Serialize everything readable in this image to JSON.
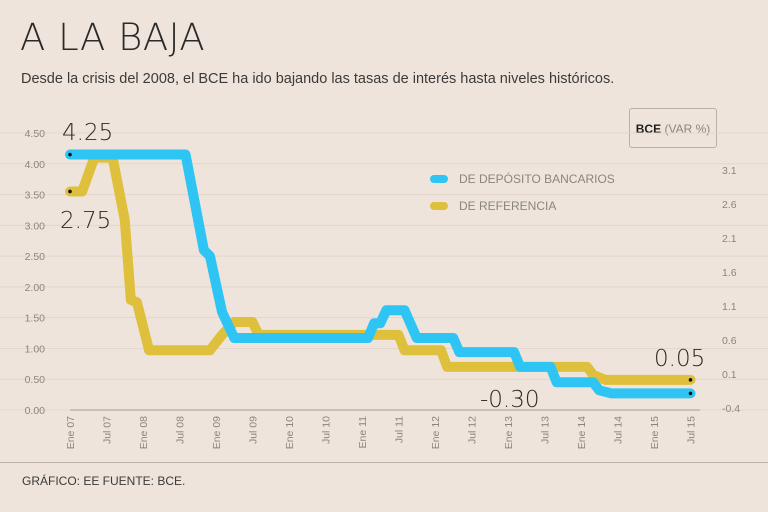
{
  "title": "A LA BAJA",
  "subtitle": "Desde la crisis del 2008, el BCE ha ido bajando las tasas de interés hasta niveles históricos.",
  "box": {
    "bold": "BCE",
    "rest": "(VAR %)"
  },
  "footer": "GRÁFICO: EE  FUENTE: BCE.",
  "colors": {
    "deposito": "#2ec5f5",
    "referencia": "#dfc03c",
    "background": "#efe4db"
  },
  "chart_data": {
    "type": "line",
    "title": "A LA BAJA",
    "ylim": [
      0,
      4.5
    ],
    "y2lim": [
      -0.4,
      3.1
    ],
    "yticks": [
      "4.50",
      "4.00",
      "3.50",
      "3.00",
      "2.50",
      "2.00",
      "1.50",
      "1.00",
      "0.50",
      "0.00"
    ],
    "y2ticks": [
      "3.1",
      "2.6",
      "2.1",
      "1.6",
      "1.1",
      "0.6",
      "0.1",
      "-0.4"
    ],
    "xticks": [
      "Ene 07",
      "Jul 07",
      "Ene 08",
      "Jul 08",
      "Ene 09",
      "Jul 09",
      "Ene 10",
      "Jul 10",
      "Ene 11",
      "Jul 11",
      "Ene 12",
      "Jul 12",
      "Ene 13",
      "Jul 13",
      "Ene 14",
      "Jul 14",
      "Ene 15",
      "Jul 15"
    ],
    "grid": true,
    "legend_position": "top-right",
    "series": [
      {
        "name": "DE DEPÓSITO BANCARIOS",
        "color": "#2ec5f5",
        "x": [
          "2007-01",
          "2008-08",
          "2008-11",
          "2008-12",
          "2009-02",
          "2009-04",
          "2011-02",
          "2011-03",
          "2011-04",
          "2011-05",
          "2011-08",
          "2011-10",
          "2012-04",
          "2012-05",
          "2013-02",
          "2013-03",
          "2013-08",
          "2013-09",
          "2014-03",
          "2014-04",
          "2014-06",
          "2015-07"
        ],
        "y": [
          4.15,
          4.15,
          2.6,
          2.5,
          1.59,
          1.17,
          1.17,
          1.41,
          1.41,
          1.62,
          1.62,
          1.17,
          1.17,
          0.94,
          0.94,
          0.7,
          0.7,
          0.45,
          0.45,
          0.32,
          0.27,
          0.27
        ]
      },
      {
        "name": "DE REFERENCIA",
        "color": "#dfc03c",
        "x": [
          "2007-01",
          "2007-03",
          "2007-05",
          "2007-08",
          "2007-10",
          "2007-11",
          "2007-12",
          "2008-02",
          "2008-12",
          "2009-02",
          "2009-04",
          "2009-07",
          "2009-08",
          "2011-07",
          "2011-08",
          "2012-02",
          "2012-03",
          "2014-02",
          "2014-03",
          "2014-05",
          "2015-07"
        ],
        "y": [
          3.55,
          3.55,
          4.1,
          4.1,
          3.09,
          1.79,
          1.75,
          0.97,
          0.97,
          1.22,
          1.43,
          1.43,
          1.22,
          1.22,
          0.97,
          0.97,
          0.7,
          0.7,
          0.57,
          0.49,
          0.49
        ]
      }
    ],
    "annotations": [
      {
        "text": "4.25",
        "series": "DE DEPÓSITO BANCARIOS",
        "at": "start"
      },
      {
        "text": "2.75",
        "series": "DE REFERENCIA",
        "at": "start"
      },
      {
        "text": "-0.30",
        "series": "DE DEPÓSITO BANCARIOS",
        "at": "end"
      },
      {
        "text": "0.05",
        "series": "DE REFERENCIA",
        "at": "end"
      }
    ]
  }
}
